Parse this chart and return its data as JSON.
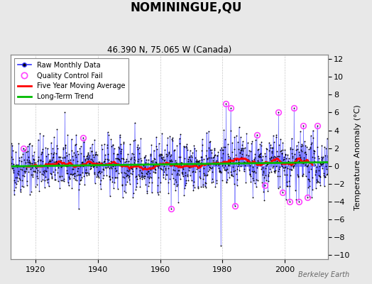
{
  "title": "NOMININGUE,QU",
  "subtitle": "46.390 N, 75.065 W (Canada)",
  "ylabel_right": "Temperature Anomaly (°C)",
  "ylim": [
    -10.5,
    12.5
  ],
  "xlim": [
    1912,
    2014
  ],
  "yticks_right": [
    -10,
    -8,
    -6,
    -4,
    -2,
    0,
    2,
    4,
    6,
    8,
    10,
    12
  ],
  "xticks": [
    1920,
    1940,
    1960,
    1980,
    2000
  ],
  "background_color": "#e8e8e8",
  "plot_bg_color": "#ffffff",
  "grid_color": "#c8c8c8",
  "line_color": "#3333ff",
  "marker_color": "#000000",
  "ma_color": "#ff0000",
  "trend_color": "#00bb00",
  "qc_fail_color": "#ff44ff",
  "watermark": "Berkeley Earth",
  "legend_items": [
    "Raw Monthly Data",
    "Quality Control Fail",
    "Five Year Moving Average",
    "Long-Term Trend"
  ],
  "start_year": 1912,
  "end_year": 2014,
  "seed": 42
}
